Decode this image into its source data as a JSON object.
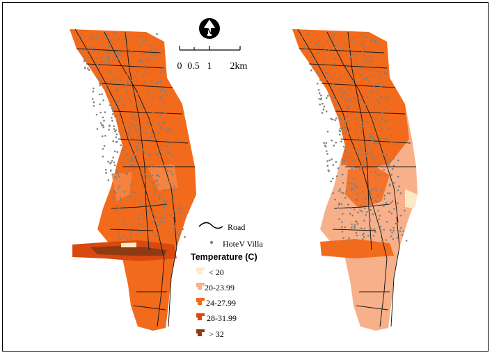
{
  "map": {
    "scale_bar": {
      "tick_labels": [
        "0",
        "0.5",
        "1",
        "2km"
      ]
    },
    "north_arrow": {
      "icon": "north-arrow-icon",
      "letter": "N"
    },
    "legend": {
      "road_label": "Road",
      "villa_label": "HoteV Villa",
      "temperature_title": "Temperature (C)",
      "classes": [
        {
          "label": "< 20",
          "color": "#fde9c4"
        },
        {
          "label": "20-23.99",
          "color": "#f7b08a"
        },
        {
          "label": "24-27.99",
          "color": "#f26a1b"
        },
        {
          "label": "28-31.99",
          "color": "#d9480f"
        },
        {
          "label": "> 32",
          "color": "#8e3a12"
        }
      ]
    },
    "panels": [
      {
        "id": "left-map",
        "dominant_class": "24-27.99"
      },
      {
        "id": "right-map",
        "dominant_class": "20-23.99"
      }
    ]
  }
}
